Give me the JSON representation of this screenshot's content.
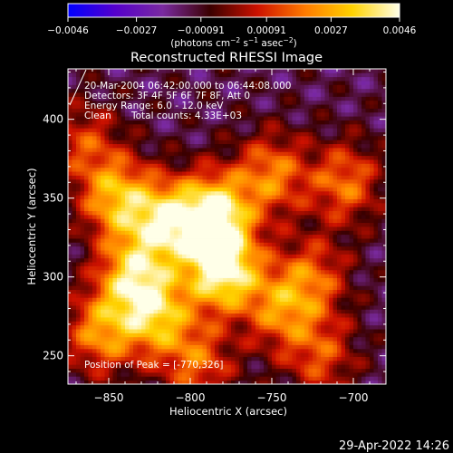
{
  "chart_data": {
    "type": "heatmap",
    "title": "Reconstructed RHESSI Image",
    "xlabel": "Heliocentric X (arcsec)",
    "ylabel": "Heliocentric Y (arcsec)",
    "xlim": [
      -875,
      -680
    ],
    "ylim": [
      232,
      432
    ],
    "x_ticks": [
      -850,
      -800,
      -750,
      -700
    ],
    "x_tick_labels": [
      "−850",
      "−800",
      "−750",
      "−700"
    ],
    "y_ticks": [
      250,
      300,
      350,
      400
    ],
    "y_tick_labels": [
      "250",
      "300",
      "350",
      "400"
    ],
    "colorbar": {
      "range": [
        -0.0046,
        0.0046
      ],
      "ticks": [
        -0.0046,
        -0.0027,
        -0.00091,
        0.00091,
        0.0027,
        0.0046
      ],
      "tick_labels": [
        "−0.0046",
        "−0.0027",
        "−0.00091",
        "0.00091",
        "0.0027",
        "0.0046"
      ],
      "units_prefix": "(photons cm",
      "units_exp1": "−2",
      "units_mid": " s",
      "units_exp2": "−1",
      "units_mid2": " asec",
      "units_exp3": "−2",
      "units_suffix": ")",
      "colors": [
        "#0000ff",
        "#5500cc",
        "#7a2aa0",
        "#3a0000",
        "#cc1100",
        "#ff7a00",
        "#ffd200",
        "#ffffe8"
      ]
    },
    "annotations": {
      "time_range": "20-Mar-2004 06:42:00.000 to 06:44:08.000",
      "detectors": "Detectors: 3F 4F 5F 6F 7F 8F, Att 0",
      "energy": "Energy Range: 6.0 - 12.0 keV",
      "method": "Clean",
      "counts": "Total counts: 4.33E+03",
      "peak": "Position of Peak = [-770,326]"
    },
    "emission_peaks": [
      {
        "x": -780,
        "y": 305,
        "v": 0.0046
      },
      {
        "x": -785,
        "y": 340,
        "v": 0.0042
      },
      {
        "x": -815,
        "y": 335,
        "v": 0.0033
      },
      {
        "x": -845,
        "y": 350,
        "v": 0.0028
      },
      {
        "x": -835,
        "y": 300,
        "v": 0.003
      },
      {
        "x": -820,
        "y": 275,
        "v": 0.0026
      },
      {
        "x": -855,
        "y": 265,
        "v": 0.0022
      },
      {
        "x": -750,
        "y": 365,
        "v": 0.002
      },
      {
        "x": -745,
        "y": 280,
        "v": 0.0018
      },
      {
        "x": -705,
        "y": 360,
        "v": 0.0018
      },
      {
        "x": -725,
        "y": 300,
        "v": 0.0014
      },
      {
        "x": -720,
        "y": 250,
        "v": 0.0012
      },
      {
        "x": -865,
        "y": 385,
        "v": 0.001
      },
      {
        "x": -795,
        "y": 245,
        "v": 0.0015
      }
    ]
  },
  "footer": {
    "date": "29-Apr-2022 14:26"
  }
}
